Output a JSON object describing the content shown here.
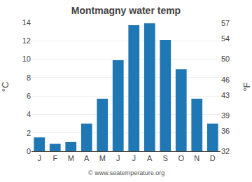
{
  "chart_data": {
    "type": "bar",
    "title": "Montmagny water temp",
    "categories": [
      "J",
      "F",
      "M",
      "A",
      "M",
      "J",
      "J",
      "A",
      "S",
      "O",
      "N",
      "D"
    ],
    "values": [
      1.5,
      0.8,
      1.0,
      3.0,
      5.7,
      9.9,
      13.7,
      13.9,
      12.1,
      8.9,
      5.7,
      3.0
    ],
    "ylabel": "°C",
    "y2label": "°F",
    "ylim": [
      0,
      14
    ],
    "yticks": [
      0,
      2,
      4,
      6,
      8,
      10,
      12,
      14
    ],
    "y2lim": [
      32,
      57.2
    ],
    "y2ticks": [
      32,
      36,
      39,
      43,
      46,
      50,
      54,
      57
    ],
    "grid": true,
    "annotations": [
      "© www.seatemperature.org"
    ]
  }
}
